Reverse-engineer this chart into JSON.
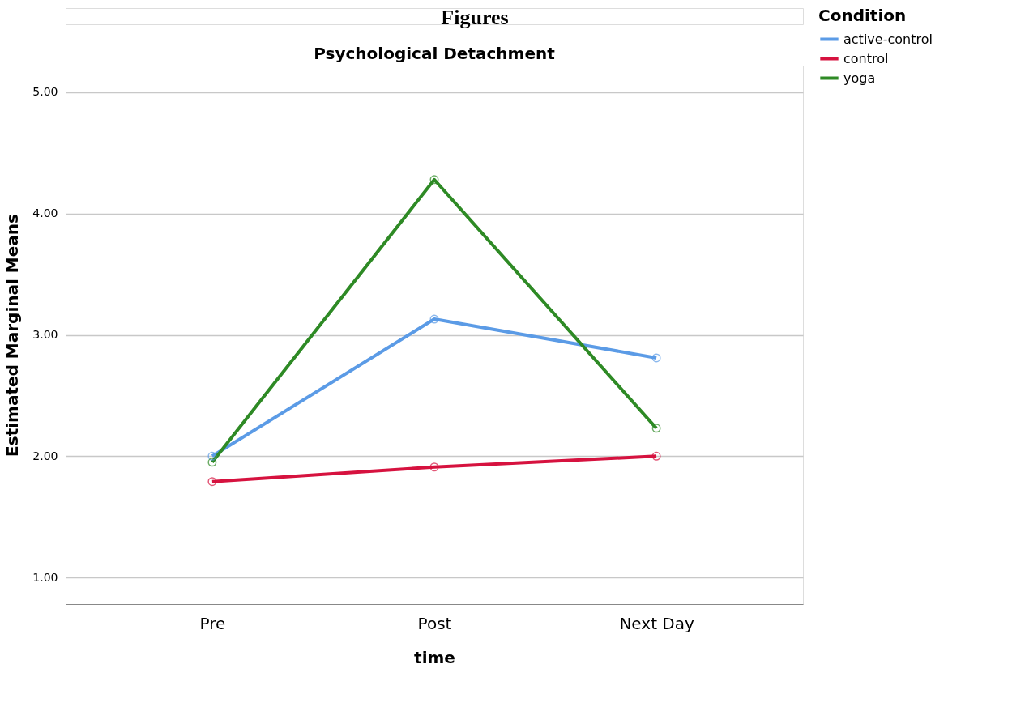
{
  "chart_data": {
    "type": "line",
    "title": "Psychological Detachment",
    "xlabel": "time",
    "ylabel": "Estimated Marginal Means",
    "legend_title": "Condition",
    "annotations": [
      "Figures"
    ],
    "categories": [
      "Pre",
      "Post",
      "Next Day"
    ],
    "series": [
      {
        "name": "active-control",
        "color": "#5b9be6",
        "values": [
          2.0,
          3.13,
          2.81
        ]
      },
      {
        "name": "control",
        "color": "#d6123f",
        "values": [
          1.79,
          1.91,
          2.0
        ]
      },
      {
        "name": "yoga",
        "color": "#2e8a25",
        "values": [
          1.95,
          4.28,
          2.23
        ]
      }
    ],
    "ylim": [
      0.78,
      5.22
    ],
    "yticks": [
      {
        "value": 1,
        "label": "1.00"
      },
      {
        "value": 2,
        "label": "2.00"
      },
      {
        "value": 3,
        "label": "3.00"
      },
      {
        "value": 4,
        "label": "4.00"
      },
      {
        "value": 5,
        "label": "5.00"
      }
    ],
    "grid": "y",
    "legend": "top right",
    "marker": "circle",
    "line_style": "solid"
  }
}
